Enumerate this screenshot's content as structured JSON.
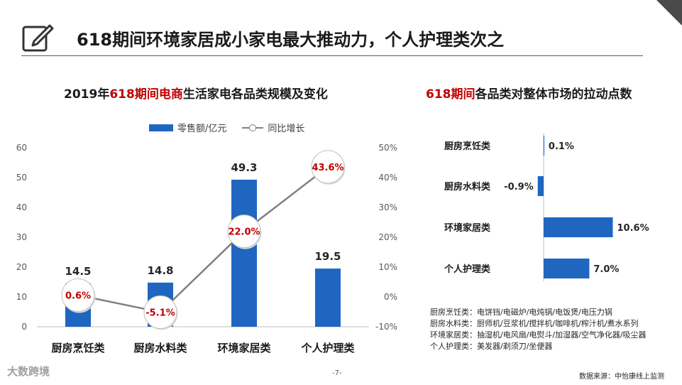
{
  "header": {
    "title": "618期间环境家居成小家电最大推动力，个人护理类次之"
  },
  "left_chart": {
    "title_pre": "2019年",
    "title_hl": "618期间电商",
    "title_post": "生活家电各品类规模及变化",
    "legend_bar": "零售额/亿元",
    "legend_line": "同比增长",
    "y_left_ticks": [
      "0",
      "10",
      "20",
      "30",
      "40",
      "50",
      "60"
    ],
    "y_right_ticks": [
      "-10%",
      "0%",
      "10%",
      "20%",
      "30%",
      "40%",
      "50%"
    ],
    "bar_labels": [
      "14.5",
      "14.8",
      "49.3",
      "19.5"
    ],
    "growth_labels": [
      "0.6%",
      "-5.1%",
      "22.0%",
      "43.6%"
    ]
  },
  "right_chart": {
    "title_hl": "618期间",
    "title_post": "各品类对整体市场的拉动点数",
    "value_labels": [
      "0.1%",
      "-0.9%",
      "10.6%",
      "7.0%"
    ]
  },
  "notes": [
    "厨房烹饪类：电饼铛/电磁炉/电炖锅/电饭煲/电压力锅",
    "厨房水料类：厨师机/豆浆机/搅拌机/咖啡机/榨汁机/煮水系列",
    "环境家居类：抽湿机/电风扇/电熨斗/加湿器/空气净化器/吸尘器",
    "个人护理类：美发器/剃须刀/坐便器"
  ],
  "source": "数据来源：中怡康线上监测",
  "page_number": "-7-",
  "watermark": "大数跨境",
  "colors": {
    "bar": "#1f66c1",
    "line": "#808080",
    "highlight": "#c00000"
  },
  "chart_data": [
    {
      "type": "bar",
      "title": "2019年618期间电商生活家电各品类规模及变化",
      "categories": [
        "厨房烹饪类",
        "厨房水料类",
        "环境家居类",
        "个人护理类"
      ],
      "series": [
        {
          "name": "零售额/亿元",
          "type": "bar",
          "axis": "left",
          "values": [
            14.5,
            14.8,
            49.3,
            19.5
          ]
        },
        {
          "name": "同比增长",
          "type": "line",
          "axis": "right",
          "values": [
            0.6,
            -5.1,
            22.0,
            43.6
          ]
        }
      ],
      "ylim_left": [
        0,
        60
      ],
      "ylim_right": [
        -10,
        50
      ],
      "legend": "top"
    },
    {
      "type": "bar",
      "orientation": "horizontal",
      "title": "618期间各品类对整体市场的拉动点数",
      "categories": [
        "厨房烹饪类",
        "厨房水料类",
        "环境家居类",
        "个人护理类"
      ],
      "values": [
        0.1,
        -0.9,
        10.6,
        7.0
      ]
    }
  ]
}
